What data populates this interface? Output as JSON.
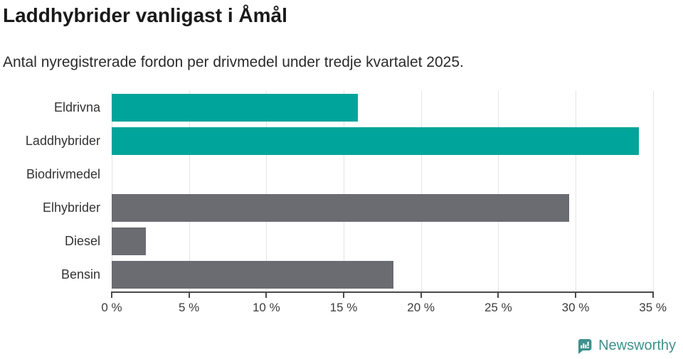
{
  "header": {
    "title": "Laddhybrider vanligast i Åmål",
    "subtitle": "Antal nyregistrerade fordon per drivmedel under tredje kvartalet 2025."
  },
  "chart_data": {
    "type": "bar",
    "orientation": "horizontal",
    "title": "Laddhybrider vanligast i Åmål",
    "subtitle": "Antal nyregistrerade fordon per drivmedel under tredje kvartalet 2025.",
    "categories": [
      "Eldrivna",
      "Laddhybrider",
      "Biodrivmedel",
      "Elhybrider",
      "Diesel",
      "Bensin"
    ],
    "values": [
      15.9,
      34.1,
      0,
      29.6,
      2.2,
      18.2
    ],
    "unit": "%",
    "bar_colors": [
      "#00a49a",
      "#00a49a",
      "#6b6b72",
      "#6b6b72",
      "#6b6b72",
      "#6b6b72"
    ],
    "x_ticks": [
      "0 %",
      "5 %",
      "10 %",
      "15 %",
      "20 %",
      "25 %",
      "30 %",
      "35 %"
    ],
    "x_tick_values": [
      0,
      5,
      10,
      15,
      20,
      25,
      30,
      35
    ],
    "xlim": [
      0,
      35.2
    ],
    "grid": "vertical",
    "legend": "none",
    "colors": {
      "highlight": "#00a49a",
      "neutral": "#6b6b72",
      "gridline": "#e4e4e4",
      "axis": "#4a4a4a"
    }
  },
  "footer": {
    "brand": "Newsworthy",
    "brand_color": "#3e918d",
    "icon": "newsworthy-logo-icon"
  }
}
